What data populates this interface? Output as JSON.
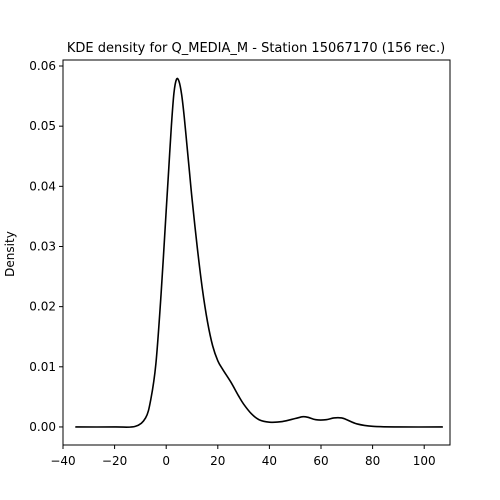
{
  "chart_data": {
    "type": "line",
    "title": "KDE density for Q_MEDIA_M - Station 15067170 (156 rec.)",
    "xlabel": "",
    "ylabel": "Density",
    "xlim": [
      -40,
      110
    ],
    "ylim": [
      -0.003,
      0.061
    ],
    "xticks": [
      -40,
      -20,
      0,
      20,
      40,
      60,
      80,
      100
    ],
    "xtick_labels": [
      "−40",
      "−20",
      "0",
      "20",
      "40",
      "60",
      "80",
      "100"
    ],
    "yticks": [
      0.0,
      0.01,
      0.02,
      0.03,
      0.04,
      0.05,
      0.06
    ],
    "ytick_labels": [
      "0.00",
      "0.01",
      "0.02",
      "0.03",
      "0.04",
      "0.05",
      "0.06"
    ],
    "grid": false,
    "series": [
      {
        "color": "#000000",
        "x": [
          -35,
          -20,
          -12,
          -8,
          -6,
          -4,
          -2,
          0,
          1,
          2,
          3,
          4,
          5,
          6,
          7,
          8,
          9,
          10,
          12,
          14,
          16,
          18,
          20,
          22,
          25,
          28,
          30,
          33,
          36,
          40,
          45,
          50,
          53,
          55,
          58,
          62,
          65,
          68,
          70,
          74,
          80,
          90,
          107
        ],
        "y": [
          0.0,
          0.0,
          0.0001,
          0.0015,
          0.0045,
          0.0105,
          0.022,
          0.036,
          0.043,
          0.05,
          0.0555,
          0.0578,
          0.0574,
          0.0552,
          0.0515,
          0.047,
          0.0425,
          0.038,
          0.03,
          0.023,
          0.0175,
          0.0135,
          0.011,
          0.0095,
          0.0075,
          0.0052,
          0.0038,
          0.0022,
          0.0012,
          0.0008,
          0.0009,
          0.0014,
          0.0017,
          0.0016,
          0.0012,
          0.0012,
          0.0015,
          0.0015,
          0.0012,
          0.0005,
          0.0001,
          0.0,
          0.0
        ]
      }
    ]
  }
}
